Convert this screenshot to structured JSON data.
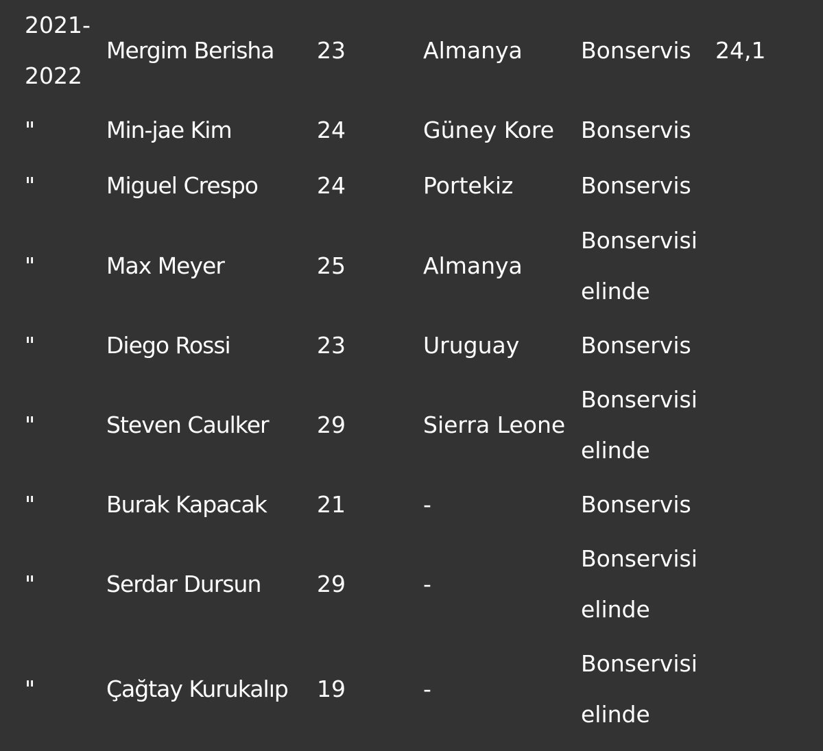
{
  "rows": [
    {
      "season": "2021-\n2022",
      "player": "Mergim Berisha",
      "age": "23",
      "country": "Almanya",
      "type": "Bonservis",
      "fee": "24,1"
    },
    {
      "season": "\"",
      "player": "Min-jae Kim",
      "age": "24",
      "country": "Güney Kore",
      "type": "Bonservis",
      "fee": ""
    },
    {
      "season": "\"",
      "player": "Miguel Crespo",
      "age": "24",
      "country": "Portekiz",
      "type": "Bonservis",
      "fee": ""
    },
    {
      "season": "\"",
      "player": "Max Meyer",
      "age": "25",
      "country": "Almanya",
      "type": "Bonservisi elinde",
      "fee": ""
    },
    {
      "season": "\"",
      "player": "Diego Rossi",
      "age": "23",
      "country": "Uruguay",
      "type": "Bonservis",
      "fee": ""
    },
    {
      "season": "\"",
      "player": "Steven Caulker",
      "age": "29",
      "country": "Sierra Leone",
      "type": "Bonservisi elinde",
      "fee": ""
    },
    {
      "season": "\"",
      "player": "Burak Kapacak",
      "age": "21",
      "country": "-",
      "type": "Bonservis",
      "fee": ""
    },
    {
      "season": "\"",
      "player": "Serdar Dursun",
      "age": "29",
      "country": "-",
      "type": "Bonservisi elinde",
      "fee": ""
    },
    {
      "season": "\"",
      "player": "Çağtay Kurukalıp",
      "age": "19",
      "country": "-",
      "type": "Bonservisi elinde",
      "fee": ""
    }
  ]
}
